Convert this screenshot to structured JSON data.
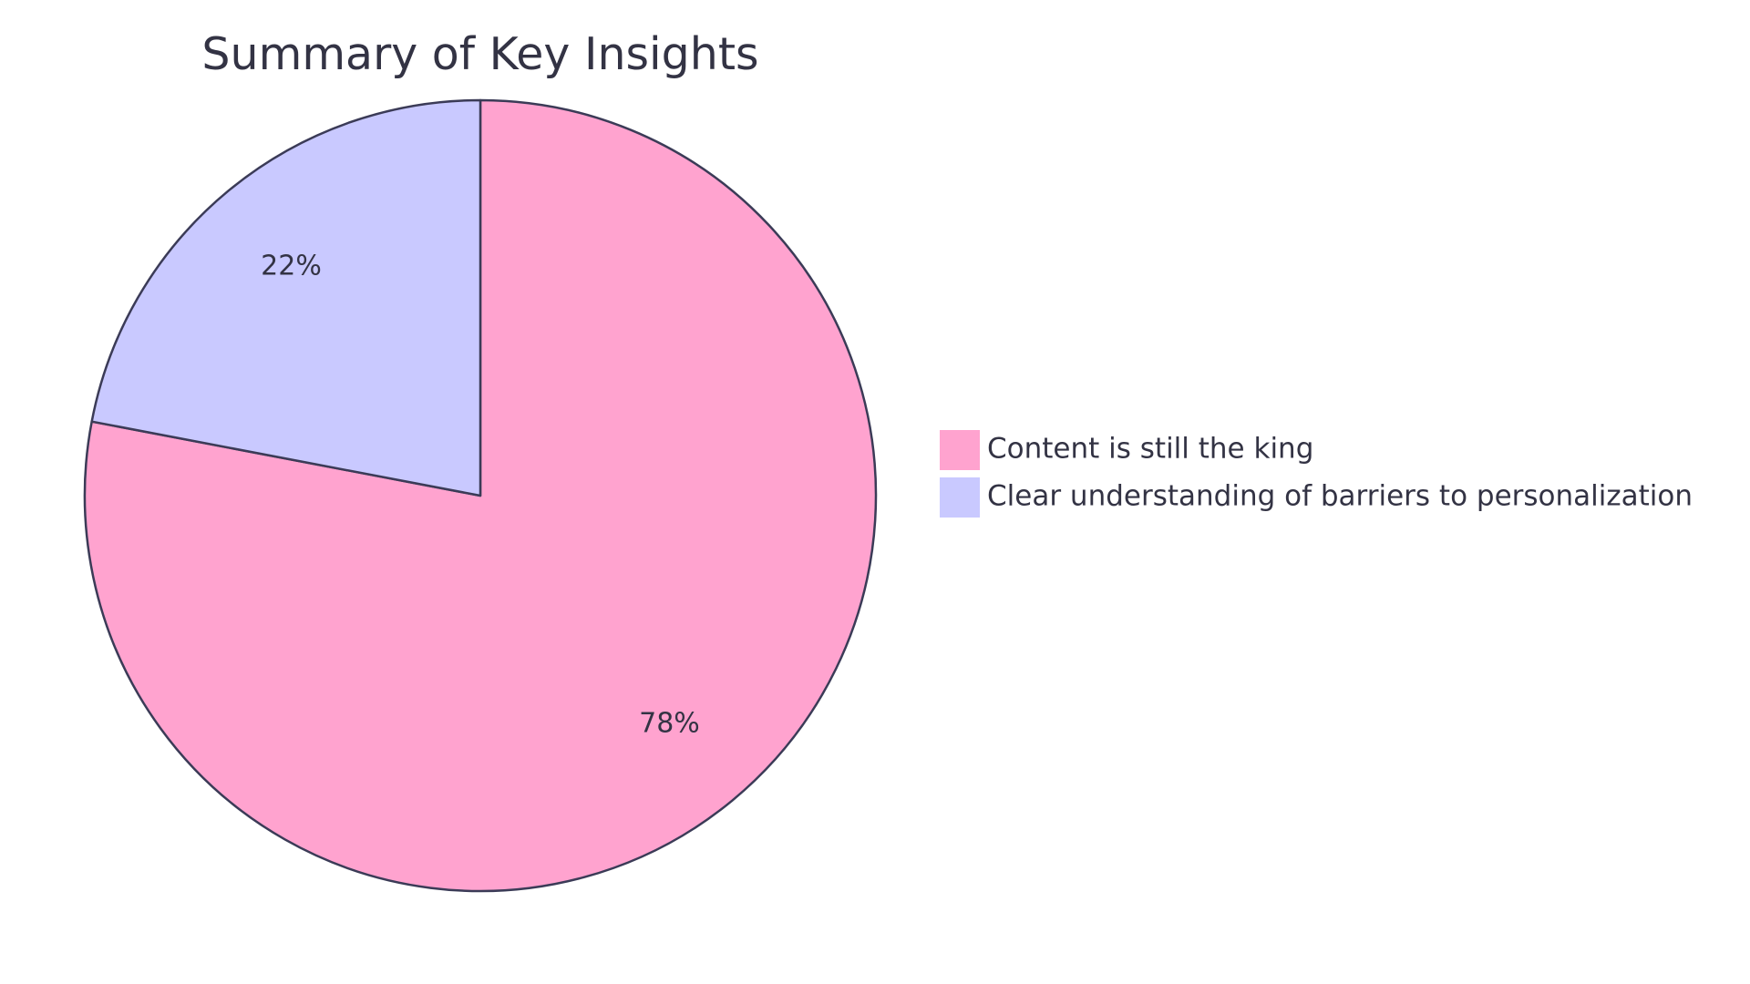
{
  "chart_data": {
    "type": "pie",
    "title": "Summary of Key Insights",
    "start_angle_deg": 0,
    "direction": "clockwise",
    "legend_position": "right",
    "slices": [
      {
        "label": "Content is still the king",
        "value": 78,
        "display": "78%",
        "color": "#FFA3CF"
      },
      {
        "label": "Clear understanding of barriers to personalization",
        "value": 22,
        "display": "22%",
        "color": "#C9C9FF"
      }
    ],
    "stroke_color": "#3B3B57"
  }
}
